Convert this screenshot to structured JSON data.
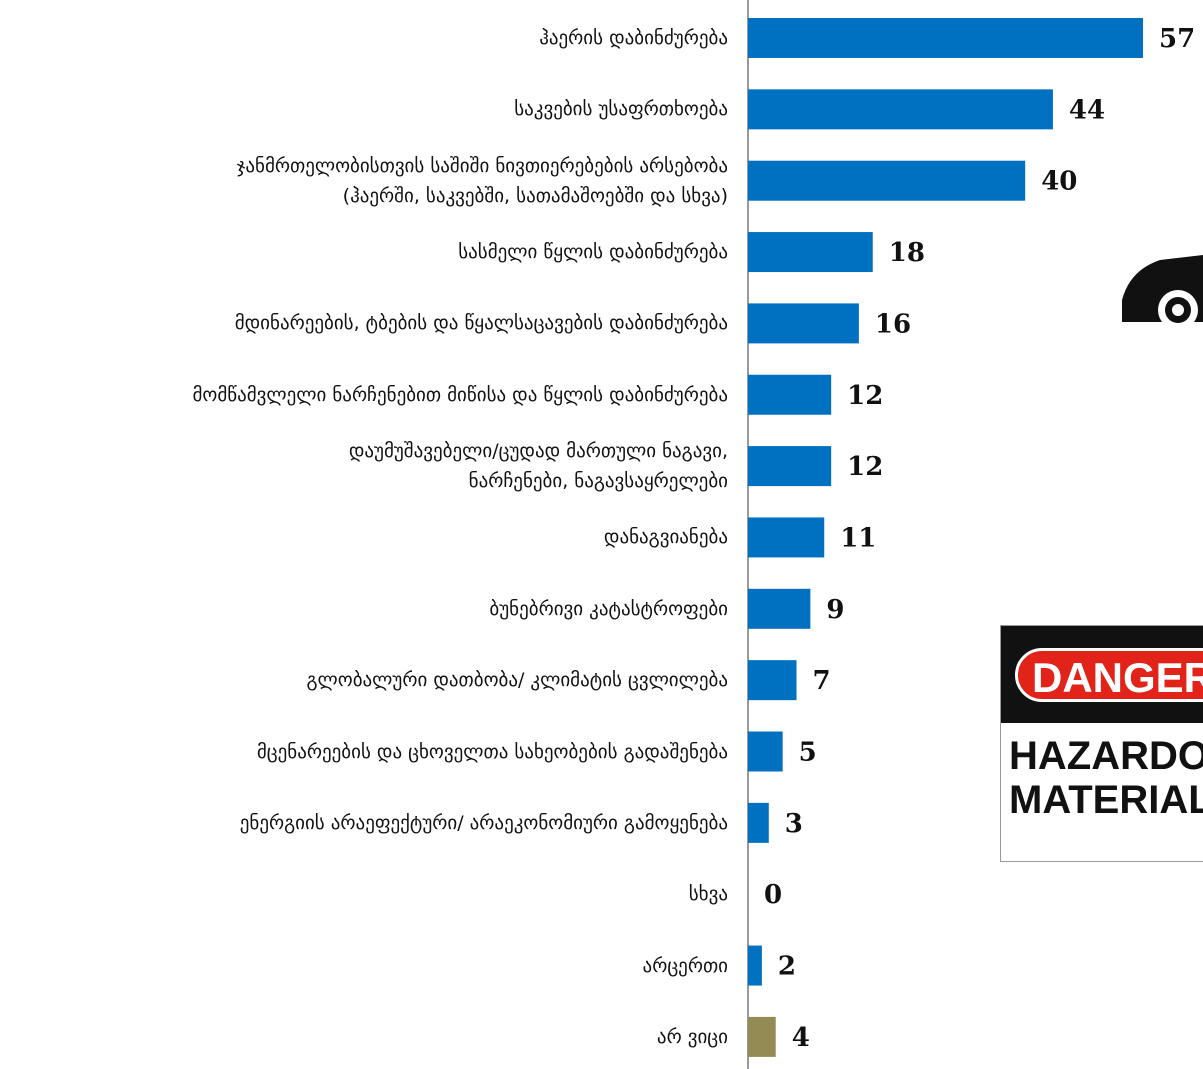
{
  "chart_data": {
    "type": "bar",
    "orientation": "horizontal",
    "categories": [
      "ჰაერის დაბინძურება",
      "საკვების უსაფრთხოება",
      "ჯანმრთელობისთვის საშიში ნივთიერებების არსებობა\n(ჰაერში, საკვებში, სათამაშოებში და სხვა)",
      "სასმელი წყლის დაბინძურება",
      "მდინარეების, ტბების და წყალსაცავების დაბინძურება",
      "მომწამვლელი ნარჩენებით მიწისა და წყლის დაბინძურება",
      "დაუმუშავებელი/ცუდად მართული ნაგავი,\nნარჩენები, ნაგავსაყრელები",
      "დანაგვიანება",
      "ბუნებრივი კატასტროფები",
      "გლობალური დათბობა/ კლიმატის ცვლილება",
      "მცენარეების და ცხოველთა სახეობების გადაშენება",
      "ენერგიის არაეფექტური/ არაეკონომიური გამოყენება",
      "სხვა",
      "არცერთი",
      "არ ვიცი"
    ],
    "values": [
      57,
      44,
      40,
      18,
      16,
      12,
      12,
      11,
      9,
      7,
      5,
      3,
      0,
      2,
      4
    ],
    "colors": [
      "#0070c0",
      "#0070c0",
      "#0070c0",
      "#0070c0",
      "#0070c0",
      "#0070c0",
      "#0070c0",
      "#0070c0",
      "#0070c0",
      "#0070c0",
      "#0070c0",
      "#0070c0",
      "#0070c0",
      "#0070c0",
      "#948a54"
    ]
  },
  "sign": {
    "header": "DANGER",
    "line1": "HAZARDOUS",
    "line2": "MATERIALS"
  }
}
